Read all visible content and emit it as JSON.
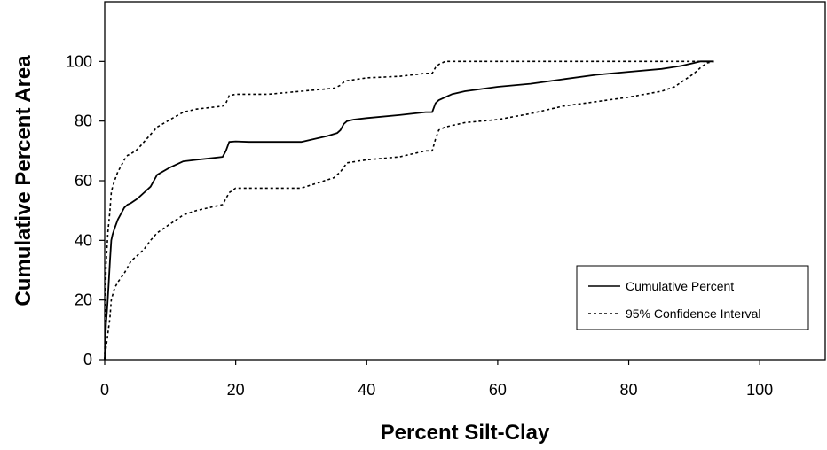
{
  "chart_data": {
    "type": "line",
    "title": "",
    "xlabel": "Percent Silt-Clay",
    "ylabel": "Cumulative Percent Area",
    "xlim": [
      0,
      110
    ],
    "ylim": [
      0,
      120
    ],
    "xticks": [
      0,
      20,
      40,
      60,
      80,
      100
    ],
    "yticks": [
      0,
      20,
      40,
      60,
      80,
      100
    ],
    "xtick_labels": [
      "0",
      "20",
      "40",
      "60",
      "80",
      "100"
    ],
    "ytick_labels": [
      "0",
      "20",
      "40",
      "60",
      "80",
      "100"
    ],
    "grid": false,
    "legend_position": "bottom-right",
    "series": [
      {
        "name": "Cumulative Percent",
        "style": "solid",
        "color": "#000000",
        "x": [
          0,
          0.2,
          0.4,
          0.6,
          0.8,
          1,
          1.2,
          1.5,
          2,
          2.5,
          3,
          3.5,
          4,
          5,
          6,
          7,
          7.5,
          8,
          10,
          12,
          14,
          16,
          18,
          18.5,
          19,
          20,
          22,
          25,
          28,
          30,
          32,
          34,
          35.5,
          36,
          36.5,
          37,
          38,
          40,
          45,
          49,
          50,
          50.5,
          51,
          52,
          53,
          55,
          60,
          65,
          70,
          75,
          80,
          85,
          88,
          90,
          91,
          92,
          93
        ],
        "y": [
          0,
          12,
          18,
          25,
          33,
          40,
          42,
          44,
          47,
          49,
          51,
          52,
          52.5,
          54,
          56,
          58,
          60,
          62,
          64.5,
          66.5,
          67,
          67.5,
          68,
          70,
          73,
          73.2,
          73,
          73,
          73,
          73,
          74,
          75,
          76,
          77,
          79,
          80,
          80.5,
          81,
          82,
          83,
          83,
          86,
          87,
          88,
          89,
          90,
          91.5,
          92.5,
          94,
          95.5,
          96.5,
          97.5,
          98.5,
          99.5,
          100,
          100,
          100
        ]
      },
      {
        "name": "95% Confidence Interval",
        "style": "dashed",
        "color": "#000000",
        "x": [
          0,
          0.2,
          0.5,
          0.8,
          1,
          1.2,
          1.5,
          2,
          2.5,
          3,
          3.5,
          4,
          5,
          6,
          7,
          8,
          10,
          12,
          14,
          16,
          18,
          18.5,
          19,
          20,
          25,
          30,
          35,
          36,
          36.5,
          37,
          40,
          45,
          49,
          50,
          50.5,
          51,
          52,
          55,
          60,
          65,
          70,
          75,
          80,
          85,
          88,
          90,
          91,
          92,
          93
        ],
        "y": [
          0,
          32,
          43,
          50,
          56,
          58,
          60,
          63,
          65,
          67,
          68.5,
          69,
          70.5,
          73,
          75.5,
          78,
          80.5,
          83,
          84,
          84.5,
          85,
          86,
          88.5,
          89,
          89,
          90,
          91,
          92,
          93,
          93.5,
          94.5,
          95,
          96,
          96,
          98,
          99,
          100,
          100,
          100,
          100,
          100,
          100,
          100,
          100,
          100,
          100,
          100,
          100,
          100
        ]
      },
      {
        "name": "95% Confidence Interval",
        "style": "dashed",
        "color": "#000000",
        "x": [
          0,
          0.2,
          0.5,
          0.8,
          1,
          1.5,
          2,
          3,
          4,
          5,
          6,
          7,
          8,
          10,
          12,
          14,
          16,
          18,
          18.5,
          19,
          20,
          25,
          30,
          35,
          36,
          37,
          40,
          45,
          49,
          50,
          50.5,
          51,
          52,
          55,
          60,
          65,
          70,
          75,
          80,
          85,
          87,
          88,
          89,
          90,
          91,
          92,
          93
        ],
        "y": [
          0,
          4,
          9,
          14,
          20,
          24,
          26,
          29,
          33,
          35,
          37,
          40,
          42.5,
          45.5,
          48.5,
          50,
          51,
          52,
          54,
          56,
          57.5,
          57.5,
          57.5,
          61,
          63,
          66,
          67,
          68,
          70,
          70,
          74,
          77,
          78,
          79.5,
          80.5,
          82.5,
          85,
          86.5,
          88,
          90,
          91.5,
          93,
          94.5,
          96,
          98,
          99.5,
          100
        ]
      }
    ],
    "legend": [
      {
        "label": "Cumulative Percent",
        "style": "solid"
      },
      {
        "label": "95% Confidence Interval",
        "style": "dashed"
      }
    ]
  }
}
